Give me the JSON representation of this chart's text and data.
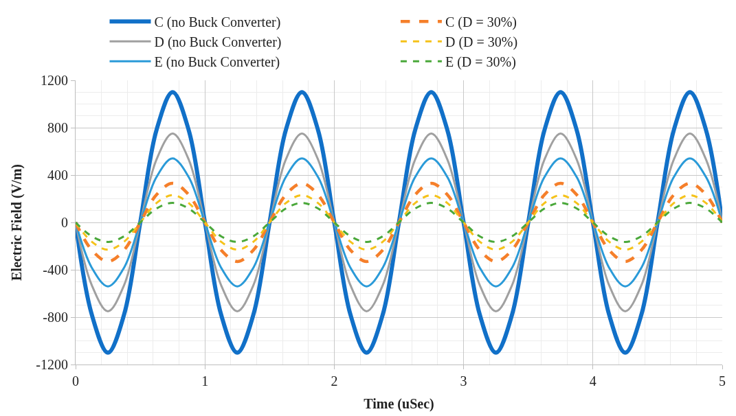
{
  "chart_data": {
    "type": "line",
    "xlabel": "Time (uSec)",
    "ylabel": "Electric Field (V/m)",
    "x": [
      0,
      0.125,
      0.25,
      0.375,
      0.5,
      0.625,
      0.75,
      0.875,
      1,
      1.125,
      1.25,
      1.375,
      1.5,
      1.625,
      1.75,
      1.875,
      2,
      2.125,
      2.25,
      2.375,
      2.5,
      2.625,
      2.75,
      2.875,
      3,
      3.125,
      3.25,
      3.375,
      3.5,
      3.625,
      3.75,
      3.875,
      4,
      4.125,
      4.25,
      4.375,
      4.5,
      4.625,
      4.75,
      4.875,
      5
    ],
    "xlim": [
      0,
      5
    ],
    "xticks": [
      0,
      1,
      2,
      3,
      4,
      5
    ],
    "ylim": [
      -1200,
      1200
    ],
    "yticks": [
      -1200,
      -800,
      -400,
      0,
      400,
      800,
      1200
    ],
    "grid": true,
    "legend": "top",
    "marker": "none",
    "series": [
      {
        "name": "C (no Buck Converter)",
        "color": "#1170c8",
        "line_style": "solid",
        "values": [
          0,
          -778,
          -1100,
          -778,
          0,
          778,
          1100,
          778,
          0,
          -778,
          -1100,
          -778,
          0,
          778,
          1100,
          778,
          0,
          -778,
          -1100,
          -778,
          0,
          778,
          1100,
          778,
          0,
          -778,
          -1100,
          -778,
          0,
          778,
          1100,
          778,
          0,
          -778,
          -1100,
          -778,
          0,
          778,
          1100,
          778,
          0
        ]
      },
      {
        "name": "D (no Buck Converter)",
        "color": "#a0a0a0",
        "line_style": "solid",
        "values": [
          0,
          -530,
          -750,
          -530,
          0,
          530,
          750,
          530,
          0,
          -530,
          -750,
          -530,
          0,
          530,
          750,
          530,
          0,
          -530,
          -750,
          -530,
          0,
          530,
          750,
          530,
          0,
          -530,
          -750,
          -530,
          0,
          530,
          750,
          530,
          0,
          -530,
          -750,
          -530,
          0,
          530,
          750,
          530,
          0
        ]
      },
      {
        "name": "E (no Buck Converter)",
        "color": "#2a9ad8",
        "line_style": "solid",
        "values": [
          0,
          -382,
          -540,
          -382,
          0,
          382,
          540,
          382,
          0,
          -382,
          -540,
          -382,
          0,
          382,
          540,
          382,
          0,
          -382,
          -540,
          -382,
          0,
          382,
          540,
          382,
          0,
          -382,
          -540,
          -382,
          0,
          382,
          540,
          382,
          0,
          -382,
          -540,
          -382,
          0,
          382,
          540,
          382,
          0
        ]
      },
      {
        "name": "C (D = 30%)",
        "color": "#f57f2a",
        "line_style": "dashed",
        "values": [
          0,
          -233,
          -330,
          -233,
          0,
          233,
          330,
          233,
          0,
          -233,
          -330,
          -233,
          0,
          233,
          330,
          233,
          0,
          -233,
          -330,
          -233,
          0,
          233,
          330,
          233,
          0,
          -233,
          -330,
          -233,
          0,
          233,
          330,
          233,
          0,
          -233,
          -330,
          -233,
          0,
          233,
          330,
          233,
          0
        ]
      },
      {
        "name": "D (D = 30%)",
        "color": "#f5c21a",
        "line_style": "dashed",
        "values": [
          0,
          -163,
          -230,
          -163,
          0,
          163,
          230,
          163,
          0,
          -163,
          -230,
          -163,
          0,
          163,
          230,
          163,
          0,
          -163,
          -230,
          -163,
          0,
          163,
          230,
          163,
          0,
          -163,
          -230,
          -163,
          0,
          163,
          230,
          163,
          0,
          -163,
          -230,
          -163,
          0,
          163,
          230,
          163,
          0
        ]
      },
      {
        "name": "E (D = 30%)",
        "color": "#4aa83a",
        "line_style": "dashed",
        "values": [
          0,
          -117,
          -165,
          -117,
          0,
          117,
          165,
          117,
          0,
          -117,
          -165,
          -117,
          0,
          117,
          165,
          117,
          0,
          -117,
          -165,
          -117,
          0,
          117,
          165,
          117,
          0,
          -117,
          -165,
          -117,
          0,
          117,
          165,
          117,
          0,
          -117,
          -165,
          -117,
          0,
          117,
          165,
          117,
          0
        ]
      }
    ]
  }
}
